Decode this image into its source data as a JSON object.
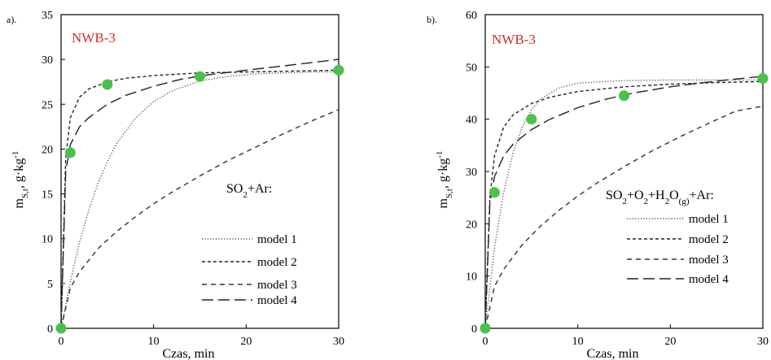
{
  "chart_data": [
    {
      "type": "line",
      "panel_label": "a).",
      "sample_label": "NWB-3",
      "xlabel": "Czas, min",
      "ylabel": "m",
      "ylabel_sub": "S,t",
      "ylabel_units": ", g·kg",
      "ylabel_sup": "-1",
      "xlim": [
        0,
        30
      ],
      "ylim": [
        0,
        35
      ],
      "xticks": [
        0,
        10,
        20,
        30
      ],
      "yticks": [
        0,
        5,
        10,
        15,
        20,
        25,
        30,
        35
      ],
      "grid": false,
      "legend_placement": "bottom-right",
      "legend_title": "SO₂+Ar:",
      "series": [
        {
          "name": "model 1",
          "style": "dotted",
          "color": "#555555",
          "x": [
            0,
            1,
            2,
            3,
            4,
            5,
            6,
            8,
            10,
            12,
            15,
            18,
            21,
            24,
            27,
            30
          ],
          "y": [
            0,
            5.2,
            9.6,
            13.2,
            16.2,
            18.6,
            20.6,
            23.4,
            25.3,
            26.5,
            27.6,
            28.1,
            28.4,
            28.5,
            28.6,
            28.6
          ]
        },
        {
          "name": "model 2",
          "style": "short-dash",
          "color": "#222222",
          "x": [
            0,
            0.5,
            1,
            2,
            3,
            5,
            7,
            10,
            15,
            20,
            25,
            30
          ],
          "y": [
            0,
            19.0,
            23.5,
            25.8,
            26.7,
            27.5,
            27.9,
            28.2,
            28.5,
            28.6,
            28.7,
            28.8
          ]
        },
        {
          "name": "model 3",
          "style": "medium-dash",
          "color": "#333333",
          "x": [
            0,
            1,
            2,
            4,
            6,
            8,
            10,
            12,
            15,
            18,
            21,
            24,
            27,
            30
          ],
          "y": [
            0,
            4.5,
            6.3,
            8.9,
            10.8,
            12.4,
            13.9,
            15.2,
            17.0,
            18.7,
            20.2,
            21.7,
            23.1,
            24.4
          ]
        },
        {
          "name": "model 4",
          "style": "long-dash",
          "color": "#222222",
          "x": [
            0,
            0.5,
            1,
            2,
            3,
            5,
            7,
            10,
            13,
            16,
            20,
            25,
            30
          ],
          "y": [
            0,
            17.5,
            20.5,
            22.5,
            23.5,
            25.0,
            26.0,
            27.0,
            27.8,
            28.3,
            28.8,
            29.4,
            30.0
          ]
        }
      ],
      "points": {
        "x": [
          0,
          1,
          5,
          15,
          30
        ],
        "y": [
          0,
          19.6,
          27.2,
          28.1,
          28.8
        ],
        "color": "#4cc04c"
      }
    },
    {
      "type": "line",
      "panel_label": "b).",
      "sample_label": "NWB-3",
      "xlabel": "Czas, min",
      "ylabel": "m",
      "ylabel_sub": "S,t",
      "ylabel_units": ", g·kg",
      "ylabel_sup": "-1",
      "xlim": [
        0,
        30
      ],
      "ylim": [
        0,
        60
      ],
      "xticks": [
        0,
        10,
        20,
        30
      ],
      "yticks": [
        0,
        10,
        20,
        30,
        40,
        50,
        60
      ],
      "grid": false,
      "legend_placement": "bottom-right",
      "legend_title": "SO₂+O₂+H₂O(g)+Ar:",
      "series": [
        {
          "name": "model 1",
          "style": "dotted",
          "color": "#555555",
          "x": [
            0,
            1,
            2,
            3,
            4,
            5,
            6,
            8,
            10,
            15,
            20,
            25,
            30
          ],
          "y": [
            0,
            15.5,
            26.0,
            33.5,
            38.5,
            41.8,
            43.9,
            46.0,
            46.9,
            47.4,
            47.5,
            47.5,
            47.5
          ]
        },
        {
          "name": "model 2",
          "style": "short-dash",
          "color": "#222222",
          "x": [
            0,
            0.5,
            1,
            2,
            3,
            5,
            7,
            10,
            15,
            20,
            25,
            30
          ],
          "y": [
            0,
            25.0,
            33.0,
            38.5,
            40.8,
            43.0,
            44.2,
            45.3,
            46.2,
            46.7,
            47.0,
            47.2
          ]
        },
        {
          "name": "model 3",
          "style": "medium-dash",
          "color": "#333333",
          "x": [
            0,
            1,
            2,
            4,
            6,
            8,
            10,
            12,
            15,
            18,
            21,
            24,
            27,
            30
          ],
          "y": [
            0,
            8.0,
            11.3,
            16.0,
            19.6,
            22.6,
            25.3,
            27.7,
            30.9,
            33.9,
            36.6,
            39.1,
            41.5,
            42.5
          ]
        },
        {
          "name": "model 4",
          "style": "long-dash",
          "color": "#222222",
          "x": [
            0,
            0.5,
            1,
            2,
            3,
            5,
            7,
            10,
            13,
            16,
            20,
            25,
            30
          ],
          "y": [
            0,
            24.0,
            29.0,
            33.0,
            35.2,
            38.0,
            40.0,
            42.2,
            43.8,
            45.0,
            46.2,
            47.3,
            48.2
          ]
        }
      ],
      "points": {
        "x": [
          0,
          1,
          5,
          15,
          30
        ],
        "y": [
          0,
          26.0,
          40.0,
          44.5,
          47.8
        ],
        "color": "#4cc04c"
      }
    }
  ],
  "styles": {
    "sample_color": "#c9302c",
    "point_color": "#4cc04c"
  }
}
